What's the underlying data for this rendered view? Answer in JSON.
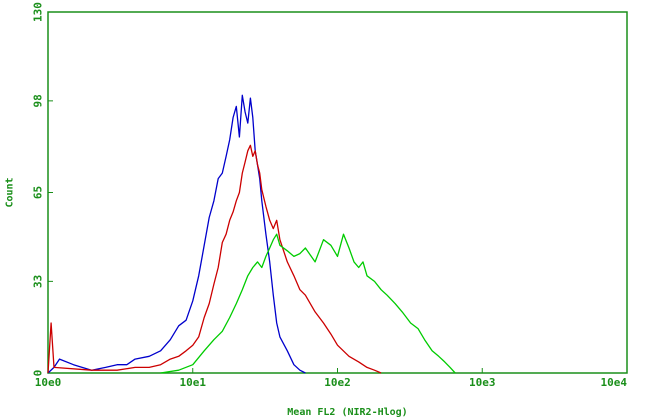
{
  "chart_data": {
    "type": "line",
    "title": "",
    "xlabel": "Mean FL2 (NIR2-Hlog)",
    "ylabel": "Count",
    "x_scale": "log",
    "xlim": [
      1,
      10000
    ],
    "ylim": [
      0,
      130
    ],
    "x_ticks": [
      {
        "value": 1,
        "label": "10e0"
      },
      {
        "value": 10,
        "label": "10e1"
      },
      {
        "value": 100,
        "label": "10e2"
      },
      {
        "value": 1000,
        "label": "10e3"
      },
      {
        "value": 10000,
        "label": "10e4"
      }
    ],
    "y_ticks": [
      {
        "value": 0,
        "label": "0"
      },
      {
        "value": 33,
        "label": "33"
      },
      {
        "value": 65,
        "label": "65"
      },
      {
        "value": 98,
        "label": "98"
      },
      {
        "value": 130,
        "label": "130"
      }
    ],
    "grid": false,
    "frame_color": "#1a8f1a",
    "series": [
      {
        "color": "#0000cc",
        "x": [
          1,
          1.1,
          1.2,
          1.5,
          2,
          2.5,
          3,
          3.5,
          4,
          5,
          6,
          7,
          8,
          9,
          10,
          11,
          12,
          13,
          14,
          15,
          16,
          17,
          18,
          19,
          20,
          21,
          22,
          23,
          24,
          25,
          26,
          27,
          28,
          29,
          30,
          32,
          34,
          36,
          38,
          40,
          45,
          50,
          55,
          60
        ],
        "y": [
          0,
          2,
          5,
          3,
          1,
          2,
          3,
          3,
          5,
          6,
          8,
          12,
          17,
          19,
          26,
          35,
          46,
          56,
          62,
          70,
          72,
          78,
          84,
          92,
          96,
          85,
          100,
          94,
          90,
          99,
          92,
          80,
          75,
          70,
          62,
          50,
          40,
          28,
          18,
          13,
          8,
          3,
          1,
          0
        ]
      },
      {
        "color": "#cc0000",
        "x": [
          1,
          1.05,
          1.1,
          2,
          3,
          4,
          5,
          6,
          7,
          8,
          9,
          10,
          11,
          12,
          13,
          14,
          15,
          16,
          17,
          18,
          19,
          20,
          21,
          22,
          23,
          24,
          25,
          26,
          27,
          28,
          29,
          30,
          32,
          34,
          36,
          38,
          40,
          45,
          50,
          55,
          60,
          70,
          80,
          90,
          100,
          120,
          140,
          160,
          180,
          200
        ],
        "y": [
          0,
          18,
          2,
          1,
          1,
          2,
          2,
          3,
          5,
          6,
          8,
          10,
          13,
          20,
          25,
          32,
          38,
          47,
          50,
          55,
          58,
          62,
          65,
          72,
          76,
          80,
          82,
          78,
          80,
          75,
          72,
          66,
          60,
          55,
          52,
          55,
          48,
          40,
          35,
          30,
          28,
          22,
          18,
          14,
          10,
          6,
          4,
          2,
          1,
          0
        ]
      },
      {
        "color": "#00cc00",
        "x": [
          6,
          8,
          10,
          12,
          14,
          16,
          18,
          20,
          22,
          24,
          26,
          28,
          30,
          32,
          34,
          36,
          38,
          40,
          45,
          50,
          55,
          60,
          70,
          80,
          90,
          100,
          110,
          120,
          130,
          140,
          150,
          160,
          180,
          200,
          220,
          250,
          280,
          320,
          360,
          400,
          450,
          500,
          550,
          600,
          650
        ],
        "y": [
          0,
          1,
          3,
          8,
          12,
          15,
          20,
          25,
          30,
          35,
          38,
          40,
          38,
          42,
          45,
          48,
          50,
          46,
          44,
          42,
          43,
          45,
          40,
          48,
          46,
          42,
          50,
          45,
          40,
          38,
          40,
          35,
          33,
          30,
          28,
          25,
          22,
          18,
          16,
          12,
          8,
          6,
          4,
          2,
          0
        ]
      }
    ]
  }
}
